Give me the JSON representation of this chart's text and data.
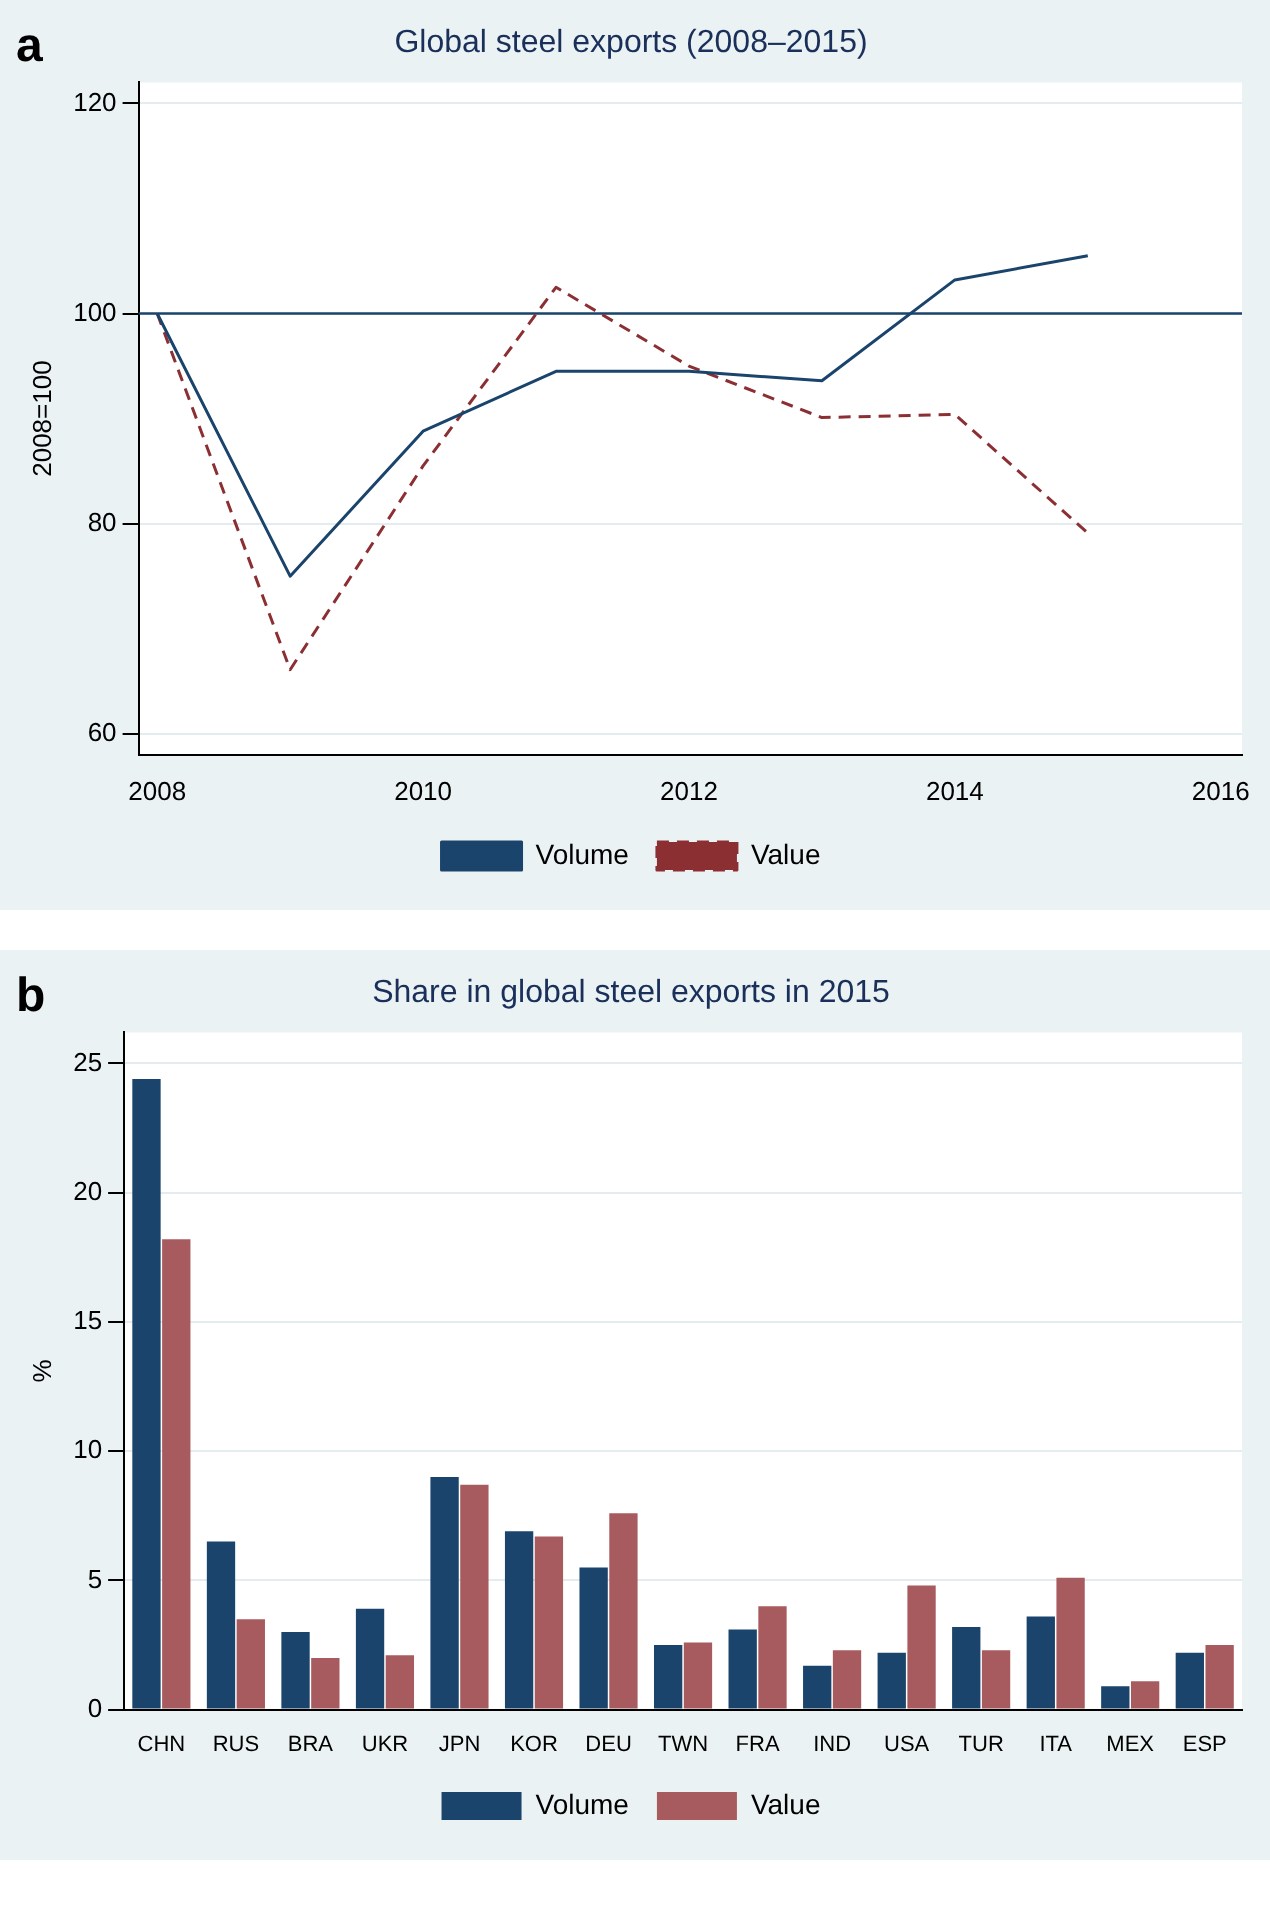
{
  "chart_data": [
    {
      "type": "line",
      "title": "Global steel exports (2008–2015)",
      "ylabel": "2008=100",
      "annotations": [
        "a"
      ],
      "x": [
        2008,
        2009,
        2010,
        2011,
        2012,
        2013,
        2014,
        2015
      ],
      "series": [
        {
          "name": "Volume",
          "color": "#1a446c",
          "line_style": "solid",
          "values": [
            100,
            75.0,
            88.8,
            94.5,
            94.5,
            93.6,
            103.2,
            105.5
          ]
        },
        {
          "name": "Value",
          "color": "#8c2f33",
          "line_style": "dashed",
          "values": [
            100,
            66.1,
            85.5,
            102.5,
            95.0,
            90.1,
            90.4,
            79.1
          ]
        }
      ],
      "xlim": [
        2007.86,
        2016.16
      ],
      "xticks": [
        2008,
        2010,
        2012,
        2014,
        2016
      ],
      "ylim": [
        58,
        122
      ],
      "yticks": [
        60,
        80,
        100,
        120
      ],
      "ref_lines": [
        {
          "axis": "y",
          "value": 100,
          "color": "#1a446c"
        }
      ],
      "grid": "y",
      "legend": "bottom",
      "marker": "none"
    },
    {
      "type": "bar",
      "title": "Share in global steel exports in 2015",
      "ylabel": "%",
      "annotations": [
        "b"
      ],
      "categories": [
        "CHN",
        "RUS",
        "BRA",
        "UKR",
        "JPN",
        "KOR",
        "DEU",
        "TWN",
        "FRA",
        "IND",
        "USA",
        "TUR",
        "ITA",
        "MEX",
        "ESP"
      ],
      "series": [
        {
          "name": "Volume",
          "color": "#1a446c",
          "values": [
            24.4,
            6.5,
            3.0,
            3.9,
            9.0,
            6.9,
            5.5,
            2.5,
            3.1,
            1.7,
            2.2,
            3.2,
            3.6,
            0.9,
            2.2
          ]
        },
        {
          "name": "Value",
          "color": "#a85b5e",
          "values": [
            18.2,
            3.5,
            2.0,
            2.1,
            8.7,
            6.7,
            7.6,
            2.6,
            4.0,
            2.3,
            4.8,
            2.3,
            5.1,
            1.1,
            2.5
          ]
        }
      ],
      "ylim": [
        0,
        26.2
      ],
      "yticks": [
        0,
        5,
        10,
        15,
        20,
        25
      ],
      "grid": "y",
      "legend": "bottom"
    }
  ]
}
